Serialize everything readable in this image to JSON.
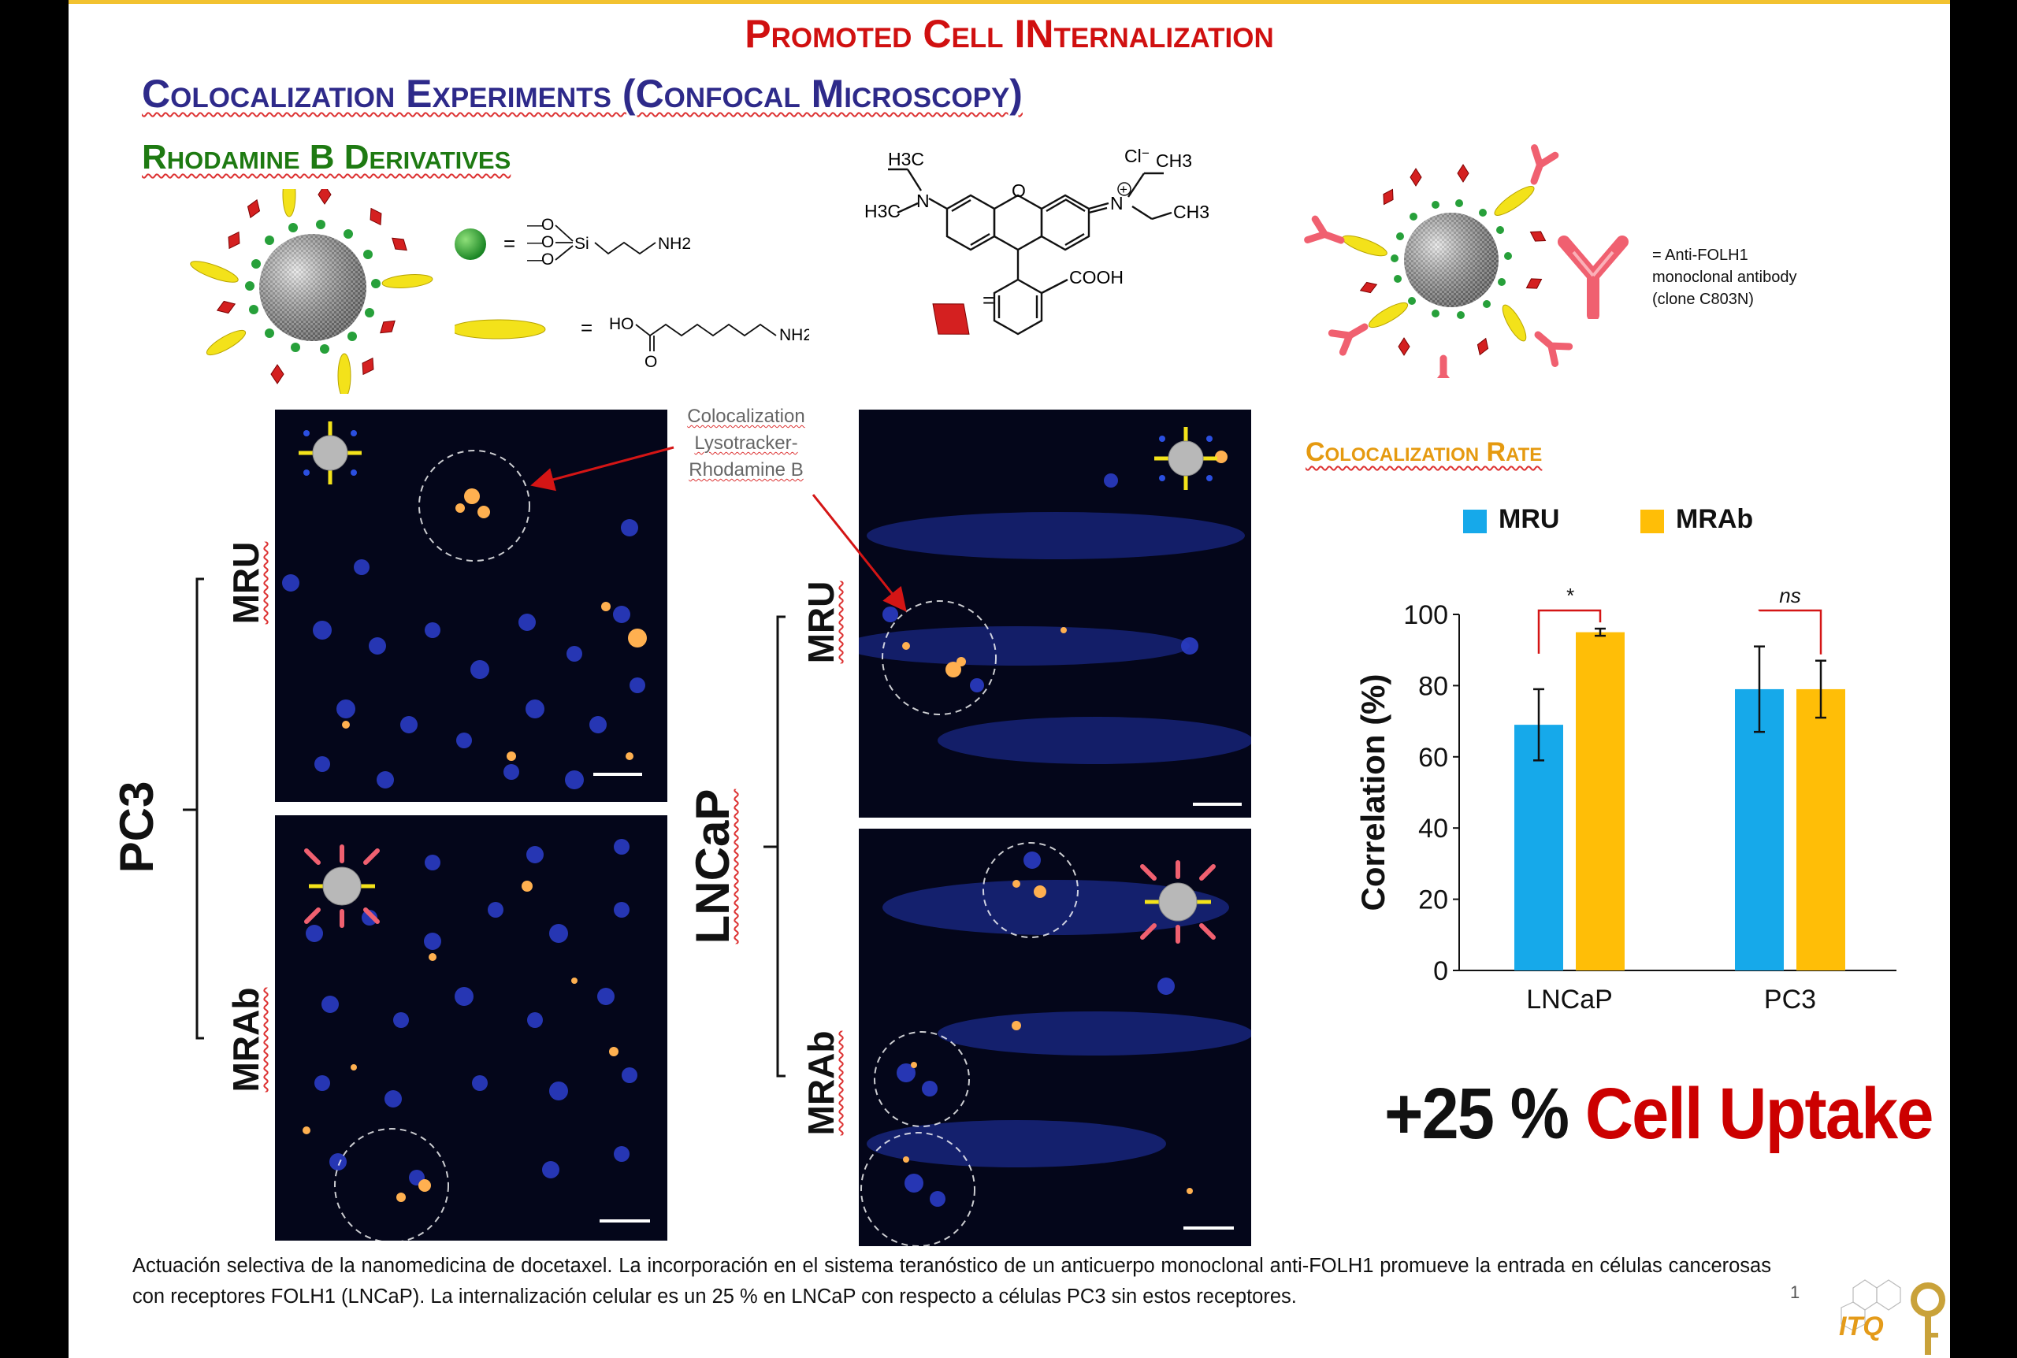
{
  "header": {
    "main_title": "Promoted Cell INternalization",
    "subtitle": "Colocalization Experiments (Confocal Microscopy)",
    "section": "Rhodamine B Derivatives"
  },
  "structures": {
    "silane_o": [
      "O",
      "O",
      "O"
    ],
    "silane_si": "Si",
    "silane_nh2": "NH2",
    "acid_ho": "HO",
    "acid_o": "O",
    "acid_nh2": "NH2",
    "equals": "=",
    "rhod_h3c_a": "H3C",
    "rhod_h3c_b": "H3C",
    "rhod_ch3_a": "CH3",
    "rhod_ch3_b": "CH3",
    "rhod_n_left": "N",
    "rhod_n_right": "N",
    "rhod_o": "O",
    "rhod_cl": "Cl",
    "rhod_cooh": "COOH",
    "plus": "+",
    "minus": "−"
  },
  "antibody_legend": {
    "line1": "= Anti-FOLH1",
    "line2": "monoclonal antibody",
    "line3": "(clone C803N)"
  },
  "microscopy": {
    "annotation_lines": [
      "Colocalization",
      "Lysotracker-",
      "Rhodamine B"
    ],
    "pc3_label": "PC3",
    "lncap_label": "LNCaP",
    "mru_label": "MRU",
    "mrab_label": "MRAb"
  },
  "chart_data": {
    "type": "bar",
    "title": "Colocalization Rate",
    "categories": [
      "LNCaP",
      "PC3"
    ],
    "series": [
      {
        "name": "MRU",
        "color": "#16a9ea",
        "values": [
          69,
          79
        ],
        "error": [
          10,
          12
        ]
      },
      {
        "name": "MRAb",
        "color": "#ffbe07",
        "values": [
          95,
          79
        ],
        "error": [
          1,
          8
        ]
      }
    ],
    "significance": [
      "*",
      "ns"
    ],
    "ylabel": "Correlation (%)",
    "xlabel": "",
    "ylim": [
      0,
      100
    ],
    "yticks": [
      0,
      20,
      40,
      60,
      80,
      100
    ],
    "legend": "top",
    "grid": false
  },
  "colors": {
    "MRU": "#16a9ea",
    "MRAb": "#ffbe07",
    "title_red": "#d01010",
    "title_blue": "#2e2a8a",
    "title_green": "#1e7a12",
    "accent_orange": "#e59a10"
  },
  "uptake": {
    "number": "+25 %",
    "text": "Cell Uptake"
  },
  "caption": "Actuación selectiva de la nanomedicina de docetaxel. La incorporación en el sistema teranóstico de un anticuerpo monoclonal anti-FOLH1 promueve la entrada en células cancerosas con receptores FOLH1 (LNCaP). La internalización celular es un 25 % en LNCaP con respecto a células PC3 sin estos receptores.",
  "page_number": "1",
  "logo_text": "ITQ"
}
